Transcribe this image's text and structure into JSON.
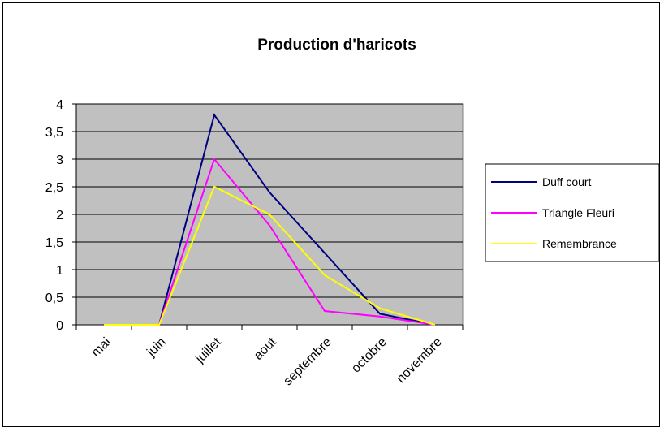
{
  "chart_data": {
    "type": "line",
    "title": "Production d'haricots",
    "xlabel": "",
    "ylabel": "",
    "categories": [
      "mai",
      "juin",
      "juillet",
      "aout",
      "septembre",
      "octobre",
      "novembre"
    ],
    "y_ticks": [
      "0",
      "0,5",
      "1",
      "1,5",
      "2",
      "2,5",
      "3",
      "3,5",
      "4"
    ],
    "ylim": [
      0,
      4
    ],
    "grid": true,
    "legend_position": "right",
    "plot_background": "#c0c0c0",
    "series": [
      {
        "name": "Duff court",
        "color": "#000080",
        "values": [
          0,
          0,
          3.8,
          2.4,
          1.3,
          0.2,
          0
        ]
      },
      {
        "name": "Triangle Fleuri",
        "color": "#ff00ff",
        "values": [
          0,
          0,
          3.0,
          1.8,
          0.25,
          0.15,
          0
        ]
      },
      {
        "name": "Remembrance",
        "color": "#ffff00",
        "values": [
          0,
          0,
          2.5,
          2.0,
          0.9,
          0.3,
          0
        ]
      }
    ]
  }
}
